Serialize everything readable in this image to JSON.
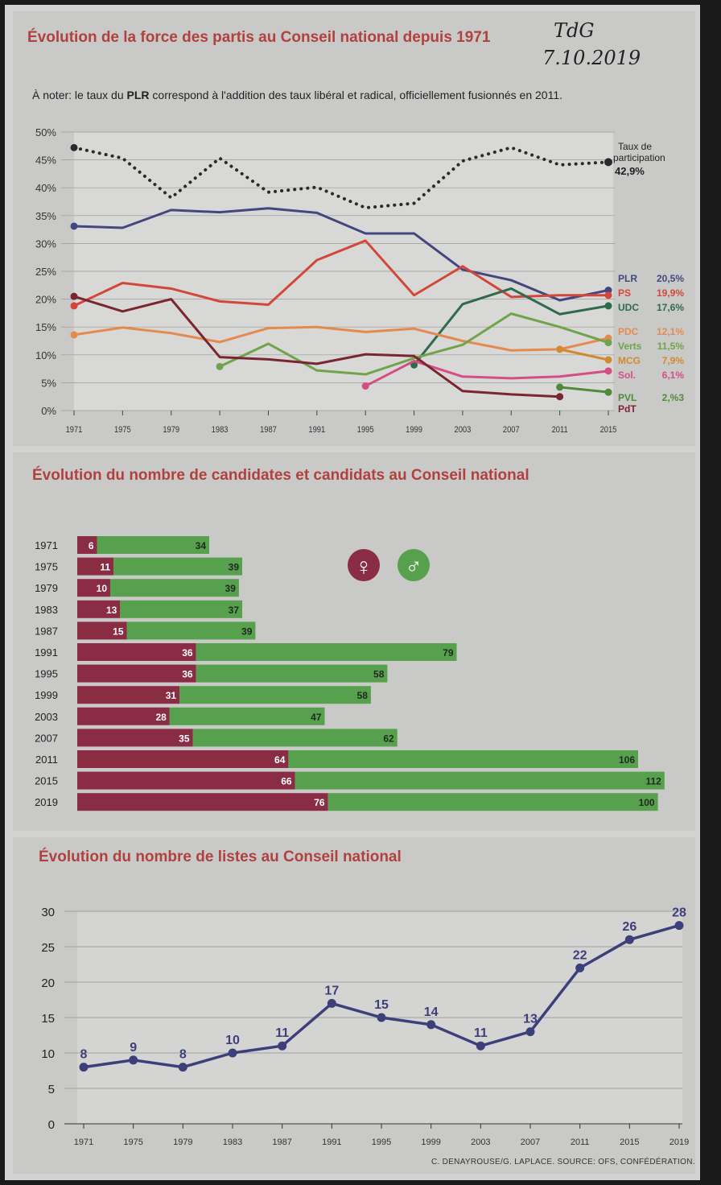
{
  "handwritten": {
    "line1": "TdG",
    "line2": "7.10.2019"
  },
  "chart_data": [
    {
      "type": "line",
      "title": "Évolution de la force des partis au Conseil national depuis 1971",
      "subtitle_prefix": "À noter: le taux du ",
      "subtitle_bold": "PLR",
      "subtitle_suffix": " correspond à l'addition des taux libéral et radical, officiellement fusionnés en 2011.",
      "x": [
        1971,
        1975,
        1979,
        1983,
        1987,
        1991,
        1995,
        1999,
        2003,
        2007,
        2011,
        2015
      ],
      "ylim": [
        0,
        50
      ],
      "yticks": [
        "0%",
        "5%",
        "10%",
        "15%",
        "20%",
        "25%",
        "30%",
        "35%",
        "40%",
        "45%",
        "50%"
      ],
      "turnout": {
        "label_line1": "Taux de",
        "label_line2": "participation",
        "value_label": "42,9%",
        "color": "#2a2a2a",
        "values": [
          47.2,
          45.3,
          38.2,
          45.3,
          39.2,
          40.1,
          36.4,
          37.2,
          44.8,
          47.2,
          44.1,
          44.6
        ]
      },
      "series": [
        {
          "name": "PLR",
          "label": "20,5%",
          "color": "#44477f",
          "values": [
            33.1,
            32.8,
            36.0,
            35.6,
            36.3,
            35.5,
            31.8,
            31.8,
            25.3,
            23.4,
            19.8,
            21.6
          ]
        },
        {
          "name": "PS",
          "label": "19,9%",
          "color": "#d3473a",
          "values": [
            18.8,
            22.9,
            21.9,
            19.6,
            19.0,
            27.0,
            30.5,
            20.7,
            25.9,
            20.4,
            20.7,
            20.7
          ]
        },
        {
          "name": "UDC",
          "label": "17,6%",
          "color": "#2e6b4c",
          "values": [
            null,
            null,
            null,
            null,
            null,
            null,
            null,
            8.2,
            19.1,
            21.9,
            17.3,
            18.8
          ]
        },
        {
          "name": "PDC",
          "label": "12,1%",
          "color": "#e58a4f",
          "values": [
            13.6,
            14.9,
            13.9,
            12.3,
            14.8,
            15.0,
            14.1,
            14.7,
            12.5,
            10.8,
            11.0,
            13.0
          ]
        },
        {
          "name": "Verts",
          "label": "11,5%",
          "color": "#6fa44a",
          "values": [
            null,
            null,
            null,
            7.9,
            12.0,
            7.2,
            6.5,
            9.4,
            11.8,
            17.4,
            15.0,
            12.2
          ]
        },
        {
          "name": "MCG",
          "label": "7,9%",
          "color": "#d08a2f",
          "values": [
            null,
            null,
            null,
            null,
            null,
            null,
            null,
            null,
            null,
            null,
            11.0,
            9.1
          ]
        },
        {
          "name": "Sol.",
          "label": "6,1%",
          "color": "#d64d86",
          "values": [
            null,
            null,
            null,
            null,
            null,
            null,
            4.4,
            8.9,
            6.1,
            5.8,
            6.1,
            7.1
          ]
        },
        {
          "name": "PVL",
          "label": "2,%3",
          "color": "#4f8a3c",
          "values": [
            null,
            null,
            null,
            null,
            null,
            null,
            null,
            null,
            null,
            null,
            4.2,
            3.3
          ]
        },
        {
          "name": "PdT",
          "label": "",
          "color": "#7a2630",
          "values": [
            20.5,
            17.8,
            20.0,
            9.6,
            9.2,
            8.4,
            10.1,
            9.8,
            3.5,
            2.9,
            2.5,
            null
          ]
        }
      ]
    },
    {
      "type": "bar",
      "title": "Évolution du nombre de candidates et candidats au Conseil national",
      "legend": {
        "female_symbol": "♀",
        "male_symbol": "♂"
      },
      "categories": [
        "1971",
        "1975",
        "1979",
        "1983",
        "1987",
        "1991",
        "1995",
        "1999",
        "2003",
        "2007",
        "2011",
        "2015",
        "2019"
      ],
      "series": [
        {
          "name": "♀",
          "color": "#8b2c45",
          "values": [
            6,
            11,
            10,
            13,
            15,
            36,
            36,
            31,
            28,
            35,
            64,
            66,
            76
          ]
        },
        {
          "name": "♂",
          "color": "#57a04d",
          "values": [
            34,
            39,
            39,
            37,
            39,
            79,
            58,
            58,
            47,
            62,
            106,
            112,
            100
          ]
        }
      ]
    },
    {
      "type": "line",
      "title": "Évolution du nombre de listes au Conseil national",
      "categories": [
        "1971",
        "1975",
        "1979",
        "1983",
        "1987",
        "1991",
        "1995",
        "1999",
        "2003",
        "2007",
        "2011",
        "2015",
        "2019"
      ],
      "values": [
        8,
        9,
        8,
        10,
        11,
        17,
        15,
        14,
        11,
        13,
        22,
        26,
        28
      ],
      "ylim": [
        0,
        30
      ],
      "yticks": [
        "0",
        "5",
        "10",
        "15",
        "20",
        "25",
        "30"
      ],
      "color": "#3d3f7a"
    }
  ],
  "credit": "C. DENAYROUSE/G. LAPLACE. SOURCE: OFS, CONFÉDÉRATION."
}
